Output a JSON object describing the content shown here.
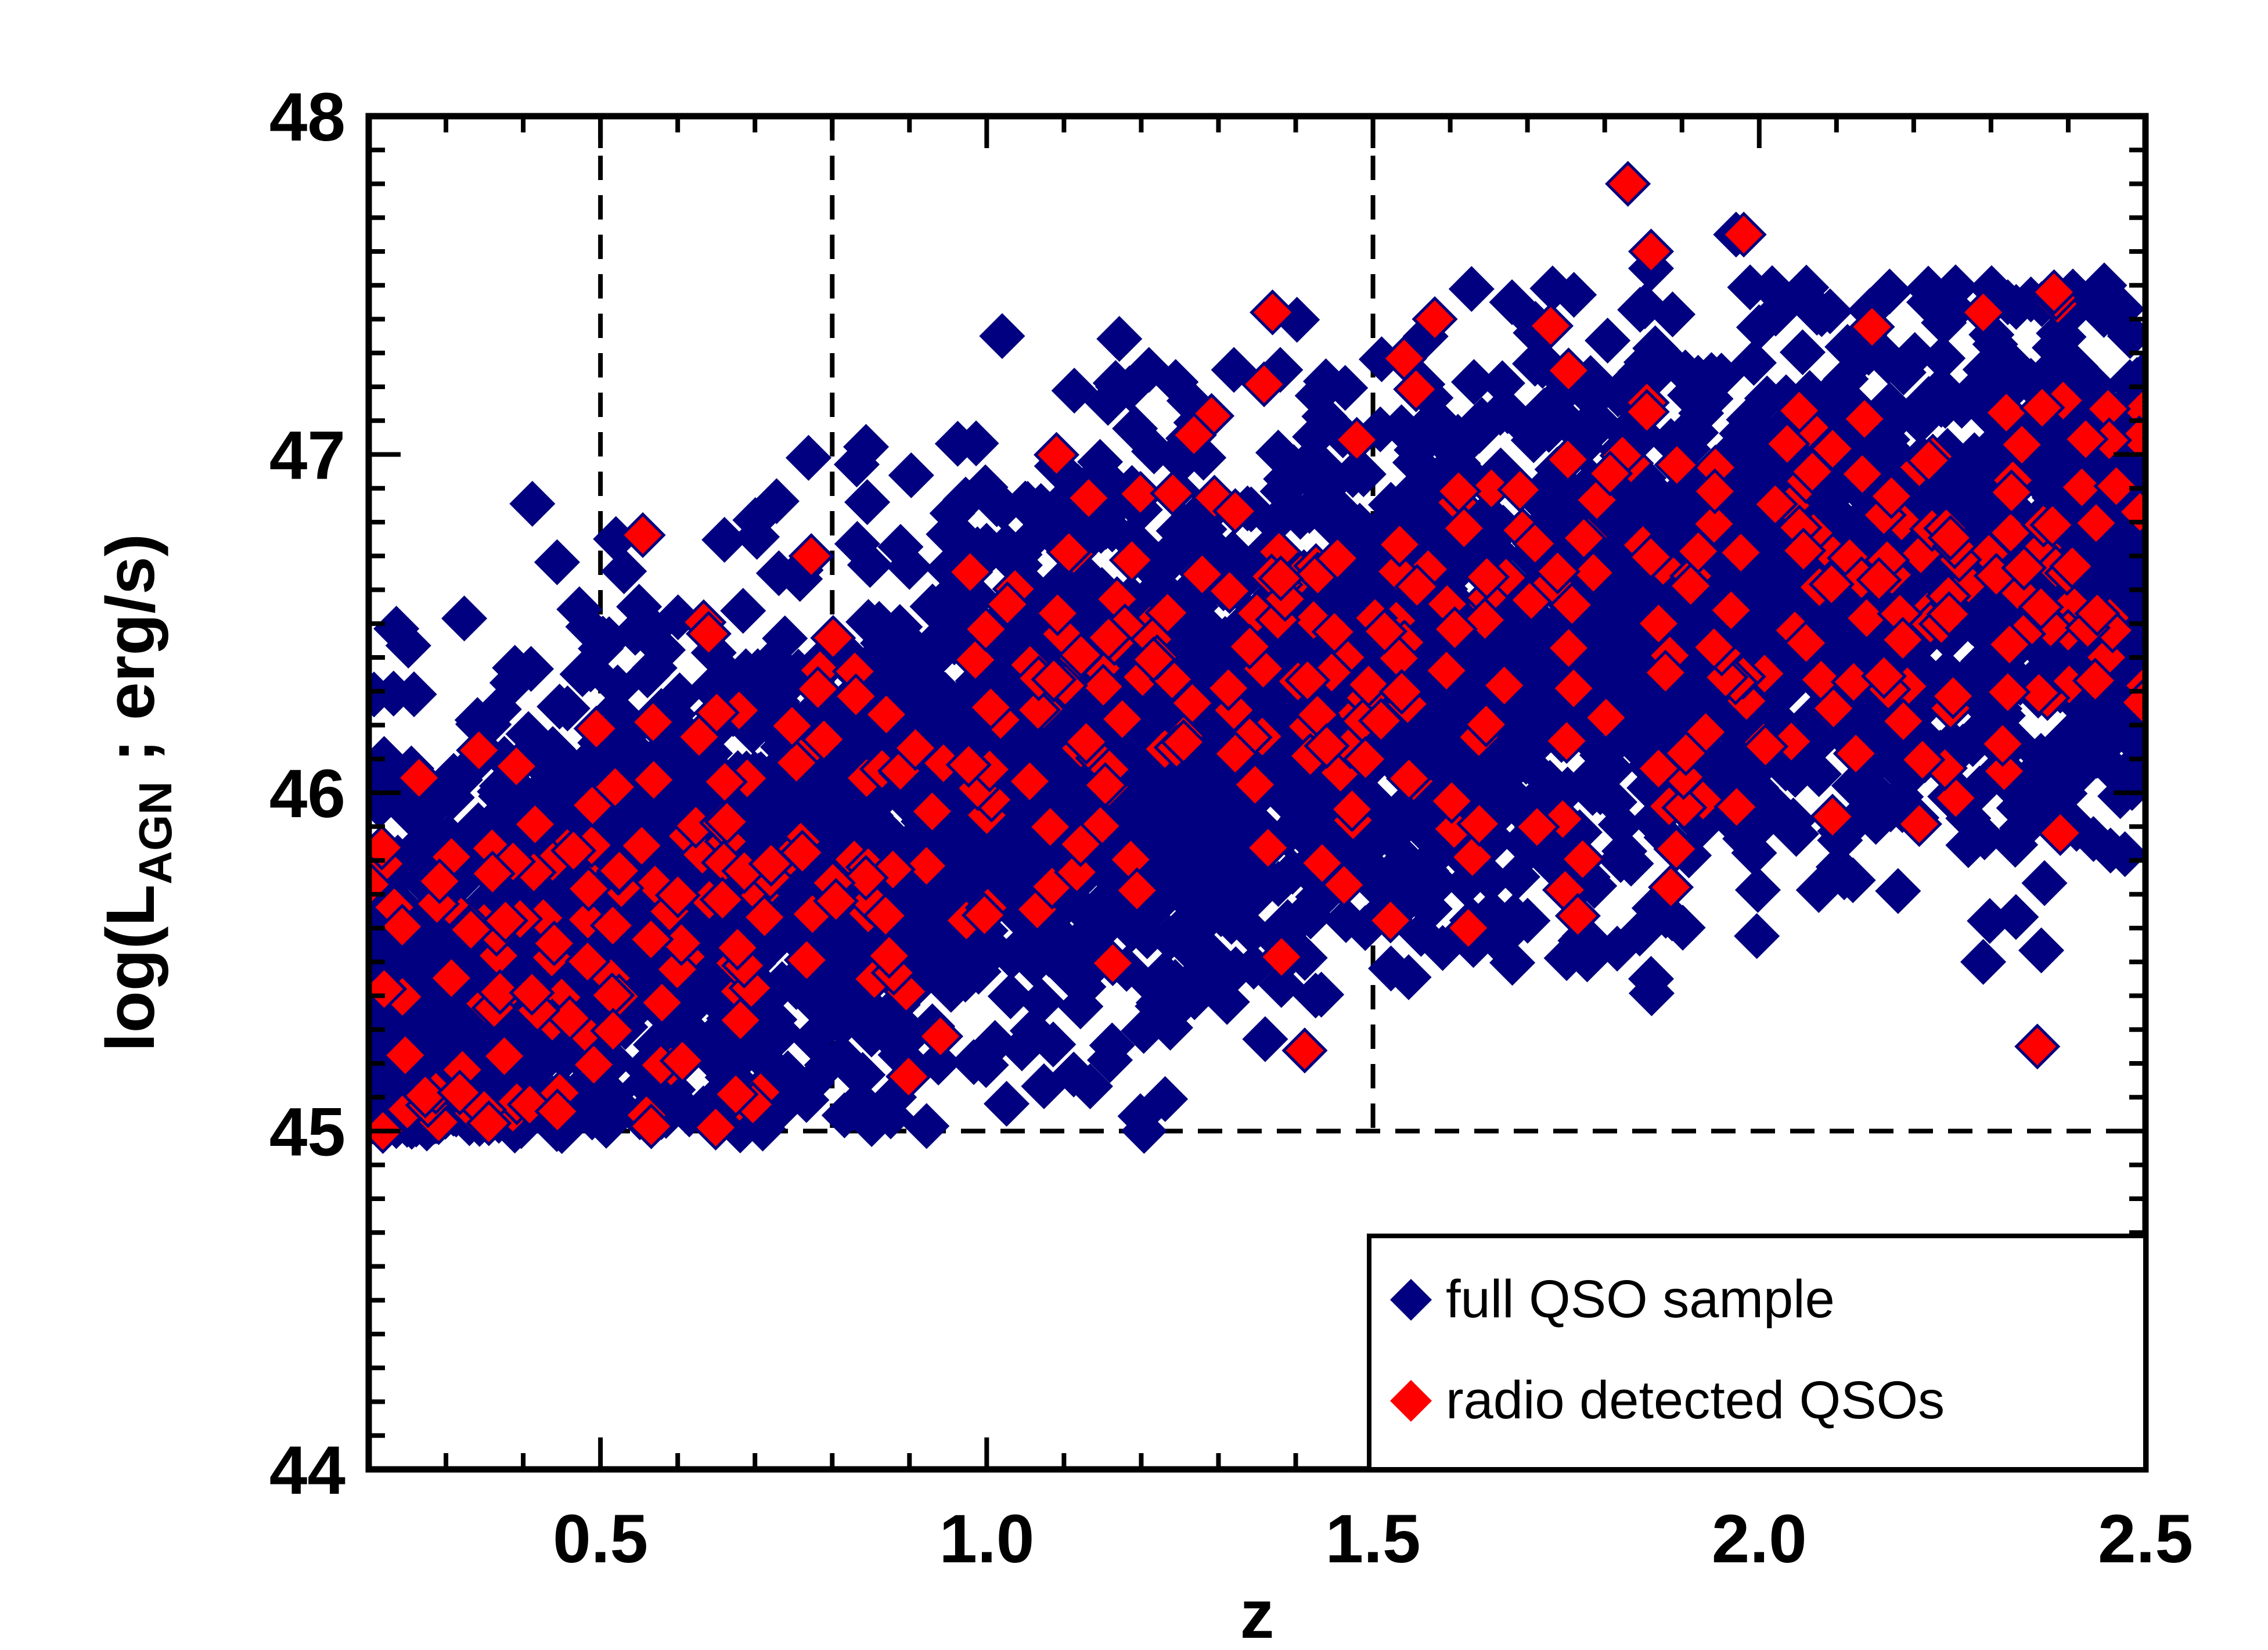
{
  "chart_data": {
    "type": "scatter",
    "title": "",
    "xlabel": "z",
    "ylabel": {
      "prefix": "log(L",
      "subscript": "AGN",
      "suffix": " ; erg/s)"
    },
    "xlim": [
      0.2,
      2.5
    ],
    "ylim": [
      44,
      48
    ],
    "x_major_ticks": [
      0.5,
      1.0,
      1.5,
      2.0,
      2.5
    ],
    "x_tick_labels": [
      "0.5",
      "1.0",
      "1.5",
      "2.0",
      "2.5"
    ],
    "y_major_ticks": [
      44,
      45,
      46,
      47,
      48
    ],
    "y_tick_labels": [
      "44",
      "45",
      "46",
      "47",
      "48"
    ],
    "grid": false,
    "reference_lines": {
      "vertical_dashed_x": [
        0.5,
        0.8,
        1.5
      ],
      "horizontal_dashed_y": 45
    },
    "legend": {
      "position": "bottom-right",
      "entries": [
        {
          "label": "full QSO sample",
          "color": "#000080",
          "marker": "diamond"
        },
        {
          "label": "radio detected QSOs",
          "color": "#ff0000",
          "marker": "diamond"
        }
      ]
    },
    "series": [
      {
        "name": "full QSO sample",
        "color": "#000080",
        "marker": "diamond",
        "trend": {
          "x": [
            0.2,
            0.5,
            0.8,
            1.0,
            1.5,
            2.0,
            2.5
          ],
          "center": [
            45.35,
            45.6,
            45.85,
            46.1,
            46.35,
            46.55,
            46.75
          ],
          "scatter": 0.4
        },
        "approx_count": 3500,
        "outliers": [
          {
            "x": 0.22,
            "y": 46.1
          },
          {
            "x": 0.31,
            "y": 46.05
          },
          {
            "x": 0.52,
            "y": 46.75
          },
          {
            "x": 0.55,
            "y": 46.55
          },
          {
            "x": 1.02,
            "y": 47.35
          },
          {
            "x": 1.17,
            "y": 47.2
          },
          {
            "x": 1.21,
            "y": 47.25
          },
          {
            "x": 1.32,
            "y": 47.25
          },
          {
            "x": 1.38,
            "y": 47.25
          },
          {
            "x": 1.68,
            "y": 47.45
          },
          {
            "x": 1.86,
            "y": 47.55
          },
          {
            "x": 1.97,
            "y": 47.65
          },
          {
            "x": 2.22,
            "y": 47.45
          },
          {
            "x": 2.48,
            "y": 47.35
          },
          {
            "x": 1.86,
            "y": 45.45
          },
          {
            "x": 2.29,
            "y": 45.5
          },
          {
            "x": 1.63,
            "y": 45.55
          },
          {
            "x": 1.49,
            "y": 45.6
          },
          {
            "x": 0.88,
            "y": 45.1
          },
          {
            "x": 0.45,
            "y": 45.0
          },
          {
            "x": 2.11,
            "y": 45.75
          }
        ]
      },
      {
        "name": "radio detected QSOs",
        "color": "#ff0000",
        "marker": "diamond",
        "trend": {
          "x": [
            0.2,
            0.5,
            0.8,
            1.0,
            1.5,
            2.0,
            2.5
          ],
          "center": [
            45.4,
            45.6,
            45.9,
            46.15,
            46.4,
            46.5,
            46.7
          ],
          "scatter": 0.38
        },
        "approx_count": 500,
        "outliers": [
          {
            "x": 1.83,
            "y": 47.8
          },
          {
            "x": 1.98,
            "y": 47.65
          },
          {
            "x": 1.86,
            "y": 47.6
          },
          {
            "x": 1.37,
            "y": 47.42
          },
          {
            "x": 1.58,
            "y": 47.4
          },
          {
            "x": 1.73,
            "y": 47.38
          },
          {
            "x": 2.29,
            "y": 47.42
          },
          {
            "x": 2.36,
            "y": 45.25
          },
          {
            "x": 0.94,
            "y": 45.28
          },
          {
            "x": 0.64,
            "y": 46.47
          },
          {
            "x": 0.22,
            "y": 45.42
          }
        ]
      }
    ]
  }
}
